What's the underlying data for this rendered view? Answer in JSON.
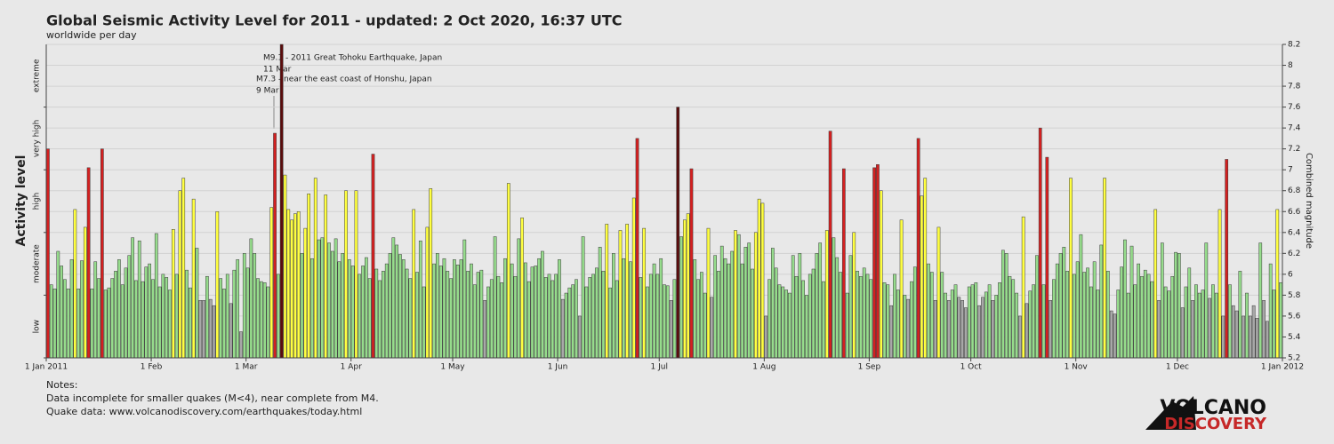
{
  "chart_data": {
    "type": "bar",
    "title": "Global Seismic Activity Level for 2011 - updated:  2 Oct 2020, 16:37 UTC",
    "subtitle": "worldwide per day",
    "y_label": "Activity level",
    "y2_label": "Combined magnitude",
    "categories": [
      "1 Jan 2011",
      null,
      null,
      null,
      null,
      null,
      null,
      null,
      null,
      null,
      null,
      null,
      null,
      null,
      null,
      null,
      null,
      null,
      null,
      null,
      null,
      null,
      null,
      null,
      null,
      null,
      null,
      null,
      null,
      null,
      null,
      "1 Feb",
      null,
      null,
      null,
      null,
      null,
      null,
      null,
      null,
      null,
      null,
      null,
      null,
      null,
      null,
      null,
      null,
      null,
      null,
      null,
      null,
      null,
      null,
      null,
      null,
      null,
      null,
      null,
      "1 Mar",
      null,
      null,
      null,
      null,
      null,
      null,
      null,
      null,
      null,
      null,
      null,
      null,
      null,
      null,
      null,
      null,
      null,
      null,
      null,
      null,
      null,
      null,
      null,
      null,
      null,
      null,
      null,
      null,
      null,
      null,
      "1 Apr",
      null,
      null,
      null,
      null,
      null,
      null,
      null,
      null,
      null,
      null,
      null,
      null,
      null,
      null,
      null,
      null,
      null,
      null,
      null,
      null,
      null,
      null,
      null,
      null,
      null,
      null,
      null,
      null,
      null,
      "1 May",
      null,
      null,
      null,
      null,
      null,
      null,
      null,
      null,
      null,
      null,
      null,
      null,
      null,
      null,
      null,
      null,
      null,
      null,
      null,
      null,
      null,
      null,
      null,
      null,
      null,
      null,
      null,
      null,
      null,
      null,
      "1 Jun",
      null,
      null,
      null,
      null,
      null,
      null,
      null,
      null,
      null,
      null,
      null,
      null,
      null,
      null,
      null,
      null,
      null,
      null,
      null,
      null,
      null,
      null,
      null,
      null,
      null,
      null,
      null,
      null,
      null,
      "1 Jul",
      null,
      null,
      null,
      null,
      null,
      null,
      null,
      null,
      null,
      null,
      null,
      null,
      null,
      null,
      null,
      null,
      null,
      null,
      null,
      null,
      null,
      null,
      null,
      null,
      null,
      null,
      null,
      null,
      null,
      null,
      "1 Aug",
      null,
      null,
      null,
      null,
      null,
      null,
      null,
      null,
      null,
      null,
      null,
      null,
      null,
      null,
      null,
      null,
      null,
      null,
      null,
      null,
      null,
      null,
      null,
      null,
      null,
      null,
      null,
      null,
      null,
      null,
      "1 Sep",
      null,
      null,
      null,
      null,
      null,
      null,
      null,
      null,
      null,
      null,
      null,
      null,
      null,
      null,
      null,
      null,
      null,
      null,
      null,
      null,
      null,
      null,
      null,
      null,
      null,
      null,
      null,
      null,
      null,
      "1 Oct",
      null,
      null,
      null,
      null,
      null,
      null,
      null,
      null,
      null,
      null,
      null,
      null,
      null,
      null,
      null,
      null,
      null,
      null,
      null,
      null,
      null,
      null,
      null,
      null,
      null,
      null,
      null,
      null,
      null,
      null,
      "1 Nov",
      null,
      null,
      null,
      null,
      null,
      null,
      null,
      null,
      null,
      null,
      null,
      null,
      null,
      null,
      null,
      null,
      null,
      null,
      null,
      null,
      null,
      null,
      null,
      null,
      null,
      null,
      null,
      null,
      null,
      "1 Dec",
      null,
      null,
      null,
      null,
      null,
      null,
      null,
      null,
      null,
      null,
      null,
      null,
      null,
      null,
      null,
      null,
      null,
      null,
      null,
      null,
      null,
      null,
      null,
      null,
      null,
      null,
      null,
      null,
      null,
      null
    ],
    "x_end_label": "1 Jan 2012",
    "values": [
      7.2,
      5.9,
      5.86,
      6.22,
      6.08,
      5.95,
      5.86,
      6.14,
      6.62,
      5.86,
      6.13,
      6.45,
      7.02,
      5.86,
      6.12,
      5.96,
      7.2,
      5.85,
      5.87,
      5.96,
      6.03,
      6.14,
      5.9,
      6.06,
      6.18,
      6.35,
      5.94,
      6.32,
      5.93,
      6.07,
      6.1,
      5.95,
      6.39,
      5.88,
      6.0,
      5.97,
      5.85,
      6.43,
      6.0,
      6.8,
      6.92,
      6.04,
      5.87,
      6.72,
      6.25,
      5.75,
      5.75,
      5.98,
      5.76,
      5.7,
      6.6,
      5.96,
      5.86,
      6.0,
      5.72,
      6.04,
      6.14,
      5.45,
      6.2,
      6.06,
      6.34,
      6.2,
      5.96,
      5.93,
      5.92,
      5.88,
      6.64,
      7.35,
      6.0,
      8.2,
      6.95,
      6.62,
      6.52,
      6.58,
      6.6,
      6.2,
      6.44,
      6.77,
      6.15,
      6.92,
      6.33,
      6.35,
      6.76,
      6.3,
      6.22,
      6.34,
      6.12,
      6.2,
      6.8,
      6.14,
      6.08,
      6.8,
      6.0,
      6.08,
      6.16,
      5.96,
      7.15,
      6.05,
      5.94,
      6.03,
      6.1,
      6.2,
      6.35,
      6.28,
      6.19,
      6.14,
      6.05,
      5.96,
      6.62,
      6.02,
      6.32,
      5.88,
      6.45,
      6.82,
      6.1,
      6.2,
      6.08,
      6.15,
      6.03,
      5.96,
      6.14,
      6.09,
      6.14,
      6.33,
      6.03,
      6.1,
      5.9,
      6.02,
      6.04,
      5.75,
      5.88,
      5.95,
      6.36,
      5.98,
      5.92,
      6.15,
      6.87,
      6.1,
      5.98,
      6.34,
      6.54,
      6.11,
      5.93,
      6.07,
      6.08,
      6.15,
      6.22,
      5.97,
      6.0,
      5.94,
      6.0,
      6.14,
      5.76,
      5.82,
      5.87,
      5.9,
      5.95,
      5.6,
      6.36,
      5.88,
      5.97,
      6.0,
      6.06,
      6.26,
      6.03,
      6.48,
      5.87,
      6.2,
      5.94,
      6.42,
      6.15,
      6.48,
      6.12,
      6.73,
      7.3,
      5.97,
      6.44,
      5.88,
      6.0,
      6.1,
      6.0,
      6.15,
      5.9,
      5.89,
      5.75,
      5.95,
      7.6,
      6.36,
      6.52,
      6.58,
      7.01,
      6.14,
      5.95,
      6.02,
      5.82,
      6.44,
      5.78,
      6.18,
      6.03,
      6.27,
      6.15,
      6.1,
      6.22,
      6.42,
      6.38,
      6.1,
      6.26,
      6.3,
      6.05,
      6.4,
      6.72,
      6.68,
      5.6,
      5.95,
      6.25,
      6.06,
      5.9,
      5.88,
      5.85,
      5.82,
      6.18,
      5.98,
      6.2,
      5.94,
      5.8,
      6.0,
      6.05,
      6.2,
      6.3,
      5.93,
      6.42,
      7.37,
      6.35,
      6.16,
      6.02,
      7.01,
      5.82,
      6.18,
      6.4,
      6.03,
      5.98,
      6.06,
      6.0,
      5.95,
      7.02,
      7.05,
      6.8,
      5.92,
      5.9,
      5.7,
      6.0,
      5.85,
      6.52,
      5.8,
      5.76,
      5.93,
      6.07,
      7.3,
      6.75,
      6.92,
      6.1,
      6.02,
      5.75,
      6.45,
      6.02,
      5.82,
      5.75,
      5.85,
      5.9,
      5.78,
      5.75,
      5.68,
      5.88,
      5.9,
      5.92,
      5.7,
      5.78,
      5.83,
      5.9,
      5.75,
      5.8,
      5.92,
      6.23,
      6.2,
      5.98,
      5.95,
      5.82,
      5.6,
      6.55,
      5.72,
      5.84,
      5.9,
      6.18,
      7.4,
      5.9,
      7.12,
      5.75,
      5.95,
      6.1,
      6.2,
      6.26,
      6.03,
      6.92,
      6.0,
      6.12,
      6.38,
      6.02,
      6.06,
      5.88,
      6.12,
      5.85,
      6.28,
      6.92,
      6.03,
      5.65,
      5.62,
      5.85,
      6.07,
      6.33,
      5.82,
      6.27,
      5.9,
      6.1,
      5.98,
      6.04,
      6.0,
      5.93,
      6.62,
      5.75,
      6.3,
      5.88,
      5.84,
      5.98,
      6.21,
      6.2,
      5.68,
      5.88,
      6.06,
      5.75,
      5.9,
      5.82,
      5.85,
      6.3,
      5.77,
      5.9,
      5.82,
      6.62,
      5.6,
      7.1,
      5.9,
      5.7,
      5.65,
      6.03,
      5.6,
      5.82,
      5.6,
      5.7,
      5.58,
      6.3,
      5.75,
      5.55,
      6.1,
      5.85,
      6.62,
      5.92
    ],
    "levels": [
      {
        "name": "low",
        "from": 5.2,
        "color": "#a8a8a8"
      },
      {
        "name": "moderate",
        "from": 5.8,
        "color": "#96dc8c"
      },
      {
        "name": "high",
        "from": 6.4,
        "color": "#ffff40"
      },
      {
        "name": "very high",
        "from": 7.0,
        "color": "#d42020"
      },
      {
        "name": "extreme",
        "from": 7.6,
        "color": "#5a0c0c"
      }
    ],
    "ylim": [
      5.2,
      8.2
    ],
    "yticks": [
      5.2,
      5.4,
      5.6,
      5.8,
      6,
      6.2,
      6.4,
      6.6,
      6.8,
      7,
      7.2,
      7.4,
      7.6,
      7.8,
      8,
      8.2
    ],
    "grid": true,
    "annotations": [
      {
        "text": "M9.1 - 2011 Great Tohoku Earthquake, Japan",
        "date": "11 Mar"
      },
      {
        "text": "M7.3 - near the east coast of Honshu, Japan",
        "date": "9 Mar"
      }
    ],
    "notes": [
      "Notes:",
      "Data incomplete for smaller quakes (M<4), near complete from M4.",
      "Quake data: www.volcanodiscovery.com/earthquakes/today.html"
    ],
    "logo": [
      "VOLCANO",
      "DISCOVERY"
    ]
  }
}
